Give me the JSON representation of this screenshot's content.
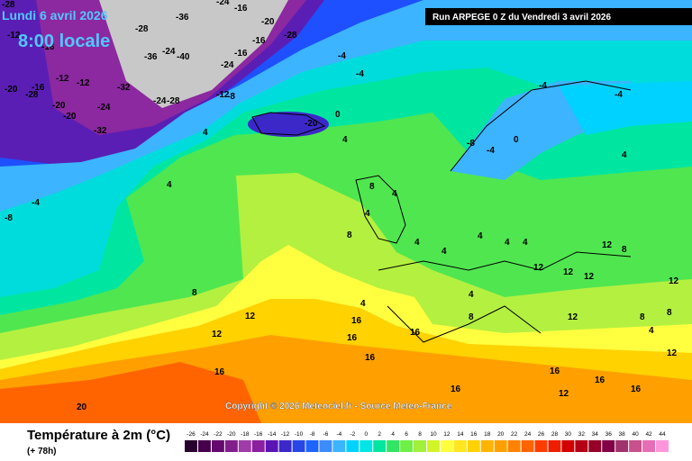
{
  "header": {
    "date": "Lundi 6 avril 2026",
    "time": "8:00 locale",
    "run": "Run ARPEGE 0 Z du Vendredi 3 avril 2026"
  },
  "copyright": "Copyright © 2026 Meteociel.fr - Source Meteo-France",
  "map_labels": [
    -28,
    -12,
    -16,
    -20,
    -16,
    -12,
    -20,
    -28,
    -20,
    -36,
    -28,
    -24,
    -32,
    -36,
    -40,
    -24,
    -16,
    -20,
    -28,
    -24,
    -28,
    -16,
    -12,
    -8,
    -16,
    -24,
    -32,
    -24,
    -12,
    -8,
    -4,
    -4,
    -4,
    0,
    -20,
    4,
    4,
    4,
    -4,
    -4,
    -4,
    0,
    4,
    -8,
    -4,
    4,
    4,
    8,
    8,
    4,
    4,
    4,
    12,
    12,
    12,
    12,
    8,
    12,
    4,
    4,
    4,
    8,
    8,
    4,
    12,
    12,
    16,
    16,
    16,
    20,
    16,
    16,
    16,
    12,
    16,
    16,
    16,
    12,
    4,
    12,
    8,
    8
  ],
  "colorbar": {
    "title": "Température à 2m (°C)",
    "subtitle": "(+ 78h)",
    "labels": [
      -26,
      -24,
      -22,
      -20,
      -18,
      -16,
      -14,
      -12,
      -10,
      -8,
      -6,
      -4,
      -2,
      0,
      2,
      4,
      6,
      8,
      10,
      12,
      14,
      16,
      18,
      20,
      22,
      24,
      26,
      28,
      30,
      32,
      34,
      36,
      38,
      40,
      42,
      44
    ],
    "colors": [
      "#28002d",
      "#46004b",
      "#640a6e",
      "#821e8c",
      "#a03caa",
      "#8c1ea0",
      "#5a14b4",
      "#3c28c8",
      "#2846e6",
      "#1e64ff",
      "#3c8cff",
      "#3cb4ff",
      "#00d2ff",
      "#00e6e6",
      "#00e6a0",
      "#32e664",
      "#6ef046",
      "#a0f03c",
      "#d2f528",
      "#ffff3c",
      "#ffe61e",
      "#ffd200",
      "#ffb400",
      "#ffa000",
      "#ff8200",
      "#ff6400",
      "#ff3c00",
      "#f01e00",
      "#d20000",
      "#b40014",
      "#960028",
      "#820046",
      "#a0326e",
      "#c8508c",
      "#e66eb4",
      "#ff96dc"
    ]
  }
}
